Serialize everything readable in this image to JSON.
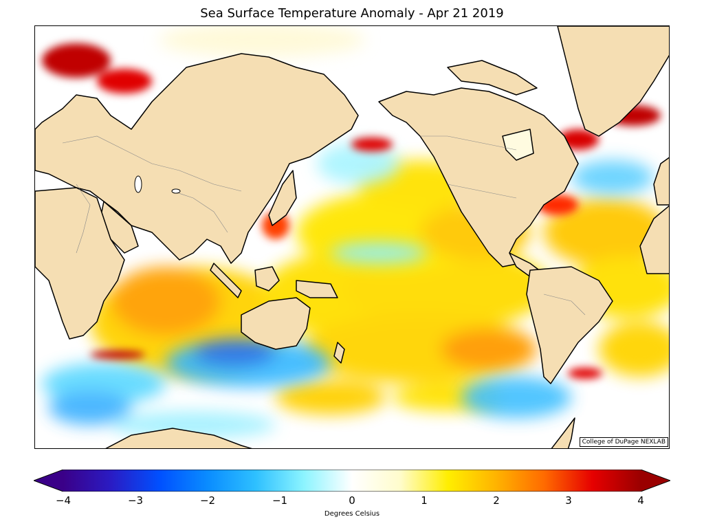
{
  "title": "Sea Surface Temperature Anomaly - Apr 21 2019",
  "credit": "College of DuPage NEXLAB",
  "colorbar": {
    "label": "Degrees Celsius",
    "min": -4,
    "max": 4,
    "ticks": [
      "−4",
      "−3",
      "−2",
      "−1",
      "0",
      "1",
      "2",
      "3",
      "4"
    ],
    "extend": "both"
  },
  "colors": {
    "land": "#f5deb3",
    "ocean_neutral": "#ffffff",
    "coast": "#000000",
    "border": "#888888"
  },
  "colormap": [
    "#3a0088",
    "#2a1cc4",
    "#0050ff",
    "#0a8cff",
    "#2ec0ff",
    "#8cf4ff",
    "#ffffff",
    "#fffccc",
    "#ffee00",
    "#ffb300",
    "#ff6a00",
    "#e60000",
    "#9a0000"
  ]
}
